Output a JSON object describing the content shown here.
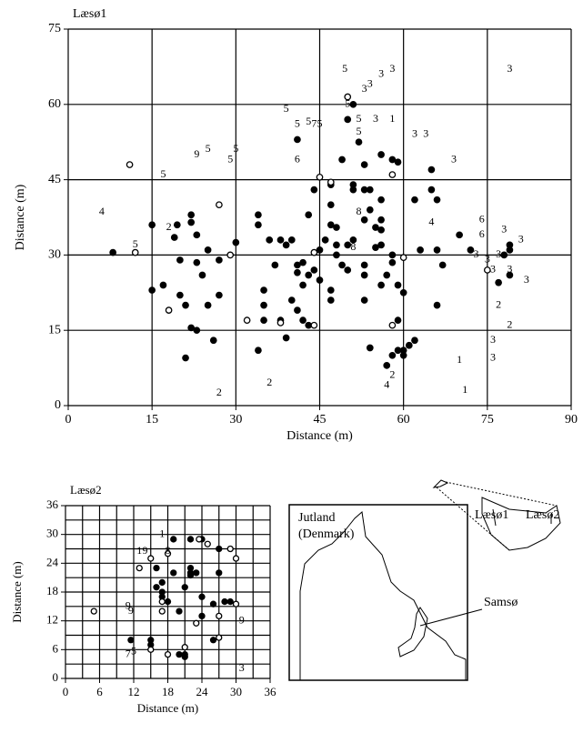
{
  "chart_data": [
    {
      "type": "scatter",
      "title": "Læsø1",
      "xlabel": "Distance (m)",
      "ylabel": "Distance (m)",
      "xlim": [
        0,
        90
      ],
      "ylim": [
        0,
        75
      ],
      "xticks": [
        0,
        15,
        30,
        45,
        60,
        75,
        90
      ],
      "yticks": [
        0,
        15,
        30,
        45,
        60,
        75
      ],
      "xgrid": [
        0,
        15,
        30,
        45,
        60,
        75,
        90
      ],
      "ygrid": [
        0,
        15,
        30,
        45,
        60,
        75
      ],
      "color": "#000000",
      "series": [
        {
          "marker": "filled",
          "x": [
            8,
            15,
            15,
            17,
            19,
            19.5,
            20,
            20,
            21,
            21,
            22,
            22,
            22,
            23,
            23,
            23,
            24,
            25,
            25,
            26,
            27,
            27,
            30,
            34,
            34,
            34,
            35,
            35,
            35,
            36,
            37,
            38,
            38,
            39,
            39,
            40,
            40,
            41,
            41,
            41,
            41,
            42,
            42,
            42,
            43,
            43,
            43,
            44,
            44,
            45,
            45,
            46,
            47,
            47,
            47,
            47,
            47,
            48,
            48,
            48,
            49,
            49,
            50,
            50,
            50,
            51,
            51,
            51,
            51,
            52,
            53,
            53,
            53,
            53,
            53,
            53,
            54,
            54,
            54,
            55,
            55,
            56,
            56,
            56,
            56,
            56,
            56,
            57,
            57,
            58,
            58,
            58,
            58,
            59,
            59,
            59,
            59,
            60,
            60,
            60,
            61,
            62,
            62,
            63,
            65,
            65,
            66,
            66,
            66,
            67,
            70,
            72,
            77,
            78,
            79,
            79,
            79
          ],
          "values": [
            30.5,
            36,
            23,
            24,
            33.5,
            36,
            29,
            22,
            9.5,
            20,
            36.5,
            38,
            15.5,
            34,
            28.5,
            15,
            26,
            31,
            20,
            13,
            29,
            22,
            32.5,
            38,
            36,
            11,
            23,
            20,
            17,
            33,
            28,
            33,
            17,
            13.5,
            32,
            21,
            33,
            28,
            26.5,
            19,
            53,
            24,
            28.5,
            17,
            16,
            26,
            38,
            43,
            27,
            31,
            25,
            33,
            36,
            40,
            44,
            23,
            21,
            35.5,
            32,
            30,
            49,
            28,
            57,
            32,
            27,
            60,
            44,
            43,
            33,
            52.5,
            48,
            43,
            37,
            28,
            26,
            21,
            11.5,
            39,
            43,
            35.5,
            31.5,
            50,
            41,
            37,
            35,
            32,
            24,
            26,
            8,
            30,
            28.5,
            10,
            49,
            11,
            48.5,
            17,
            24,
            22.5,
            10,
            11,
            12,
            13,
            41,
            31,
            47,
            43,
            31,
            41,
            20,
            28,
            34,
            31,
            24.5,
            30,
            32,
            31,
            26
          ]
        },
        {
          "marker": "open",
          "x": [
            11,
            12,
            18,
            27,
            29,
            32,
            38,
            44,
            44,
            45,
            47,
            50,
            58,
            58,
            60,
            75
          ],
          "values": [
            48,
            30.5,
            19,
            40,
            30,
            17,
            16.5,
            16,
            30.5,
            45.5,
            44.5,
            61.5,
            46,
            16,
            29.5,
            27
          ]
        },
        {
          "marker": "text",
          "x": [
            49.5,
            54,
            56,
            58,
            53,
            79,
            39,
            50,
            41,
            43,
            45,
            52,
            52,
            55,
            58,
            62,
            64,
            69,
            41,
            23,
            25,
            29,
            30,
            17,
            6,
            12,
            18,
            65,
            52,
            51,
            74,
            74,
            78,
            81,
            77,
            73,
            75,
            76,
            79,
            82,
            77,
            79,
            76,
            76,
            70,
            71,
            58,
            57,
            36,
            27,
            44
          ],
          "values": [
            67,
            64,
            66,
            67,
            63,
            67,
            59,
            60,
            56,
            56.5,
            56,
            57,
            54.5,
            57,
            57,
            54,
            54,
            49,
            49,
            50,
            51,
            49,
            51,
            46,
            38.5,
            32,
            35.5,
            36.5,
            38.5,
            31.5,
            37,
            34,
            35,
            33,
            30,
            30,
            29,
            27,
            27,
            25,
            20,
            16,
            13,
            9.5,
            9,
            3,
            6,
            4,
            4.5,
            2.5,
            56
          ],
          "texts": [
            "5",
            "3",
            "3",
            "3",
            "3",
            "3",
            "5",
            "5",
            "5",
            "5",
            "5",
            "5",
            "5",
            "3",
            "1",
            "3",
            "3",
            "3",
            "6",
            "9",
            "5",
            "5",
            "5",
            "5",
            "4",
            "5",
            "2",
            "4",
            "8",
            "8",
            "6",
            "6",
            "3",
            "3",
            "3",
            "3",
            "3",
            "3",
            "3",
            "3",
            "2",
            "2",
            "3",
            "3",
            "1",
            "1",
            "2",
            "4",
            "2",
            "2",
            "7"
          ]
        }
      ]
    },
    {
      "type": "scatter",
      "title": "Læsø2",
      "xlabel": "Distance (m)",
      "ylabel": "Distance (m)",
      "xlim": [
        0,
        36
      ],
      "ylim": [
        0,
        36
      ],
      "xticks": [
        0,
        6,
        12,
        18,
        24,
        30,
        36
      ],
      "yticks": [
        0,
        6,
        12,
        18,
        24,
        30,
        36
      ],
      "xgrid": [
        0,
        3,
        6,
        9,
        12,
        15,
        18,
        21,
        24,
        27,
        30,
        33,
        36
      ],
      "ygrid": [
        0,
        3,
        6,
        9,
        12,
        15,
        18,
        21,
        24,
        27,
        30,
        33,
        36
      ],
      "color": "#000000",
      "series": [
        {
          "marker": "filled",
          "x": [
            11.5,
            15,
            15,
            16,
            16,
            17,
            17,
            17,
            18,
            19,
            19,
            20,
            20,
            21,
            21,
            21,
            22,
            22,
            22,
            22,
            23,
            24,
            24,
            24,
            26,
            26,
            27,
            27,
            28,
            29
          ],
          "values": [
            8,
            8,
            7,
            23,
            19,
            18,
            20,
            17,
            16,
            29,
            22,
            14,
            5,
            4.5,
            5,
            19,
            22,
            23,
            21.5,
            29,
            22,
            29,
            17,
            13,
            15.5,
            8,
            27,
            22,
            16,
            16
          ]
        },
        {
          "marker": "open",
          "x": [
            5,
            13,
            15,
            15,
            17,
            17,
            18,
            18,
            21,
            23,
            25,
            27,
            27,
            29,
            30,
            30,
            23.5
          ],
          "values": [
            14,
            23,
            6,
            25,
            16,
            14,
            26,
            5,
            6.5,
            11.5,
            28,
            13,
            8.5,
            27,
            25,
            15.5,
            29
          ]
        },
        {
          "marker": "text",
          "x": [
            17,
            13,
            14,
            18,
            11,
            11.5,
            31,
            11,
            12,
            31
          ],
          "values": [
            30,
            26.5,
            26.5,
            26.5,
            15,
            14,
            12,
            5,
            5.5,
            2
          ],
          "texts": [
            "1",
            "1",
            "9",
            "8",
            "9",
            "9",
            "9",
            "7",
            "5",
            "3"
          ]
        }
      ]
    }
  ],
  "map": {
    "region": [
      "Jutland",
      "(Denmark)"
    ],
    "labels": [
      "Læsø1",
      "Læsø2",
      "Samsø"
    ]
  }
}
